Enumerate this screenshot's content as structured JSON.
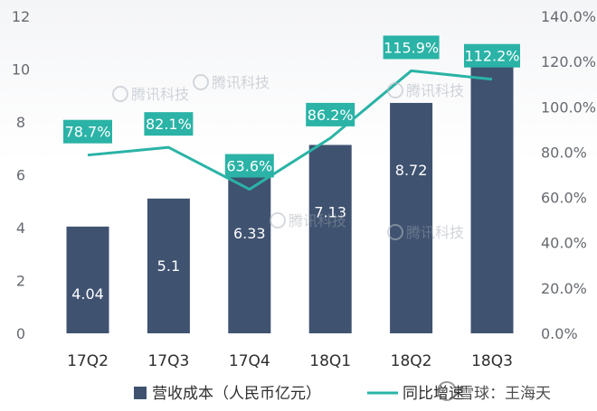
{
  "chart_data": {
    "type": "bar",
    "categories": [
      "17Q2",
      "17Q3",
      "17Q4",
      "18Q1",
      "18Q2",
      "18Q3"
    ],
    "series": [
      {
        "name": "营收成本（人民币亿元）",
        "type": "bar",
        "axis": "left",
        "values": [
          4.04,
          5.1,
          6.33,
          7.13,
          8.72,
          10.8
        ],
        "labels": [
          "4.04",
          "5.1",
          "6.33",
          "7.13",
          "8.72",
          ""
        ]
      },
      {
        "name": "同比增速",
        "type": "line",
        "axis": "right",
        "values": [
          78.7,
          82.1,
          63.6,
          86.2,
          115.9,
          112.2
        ],
        "labels": [
          "78.7%",
          "82.1%",
          "63.6%",
          "86.2%",
          "115.9%",
          "112.2%"
        ]
      }
    ],
    "y_left": {
      "min": 0,
      "max": 12,
      "ticks": [
        "0",
        "2",
        "4",
        "6",
        "8",
        "10",
        "12"
      ]
    },
    "y_right": {
      "min": 0,
      "max": 140,
      "ticks": [
        "0.0%",
        "20.0%",
        "40.0%",
        "60.0%",
        "80.0%",
        "100.0%",
        "120.0%",
        "140.0%"
      ]
    },
    "legend_position": "bottom",
    "grid": false,
    "colors": {
      "bar": "#3f5270",
      "line": "#2ab3a6",
      "label_box": "#2ab3a6"
    }
  },
  "watermark": {
    "brand": "腾讯科技",
    "credit": "雪球：王海天"
  }
}
